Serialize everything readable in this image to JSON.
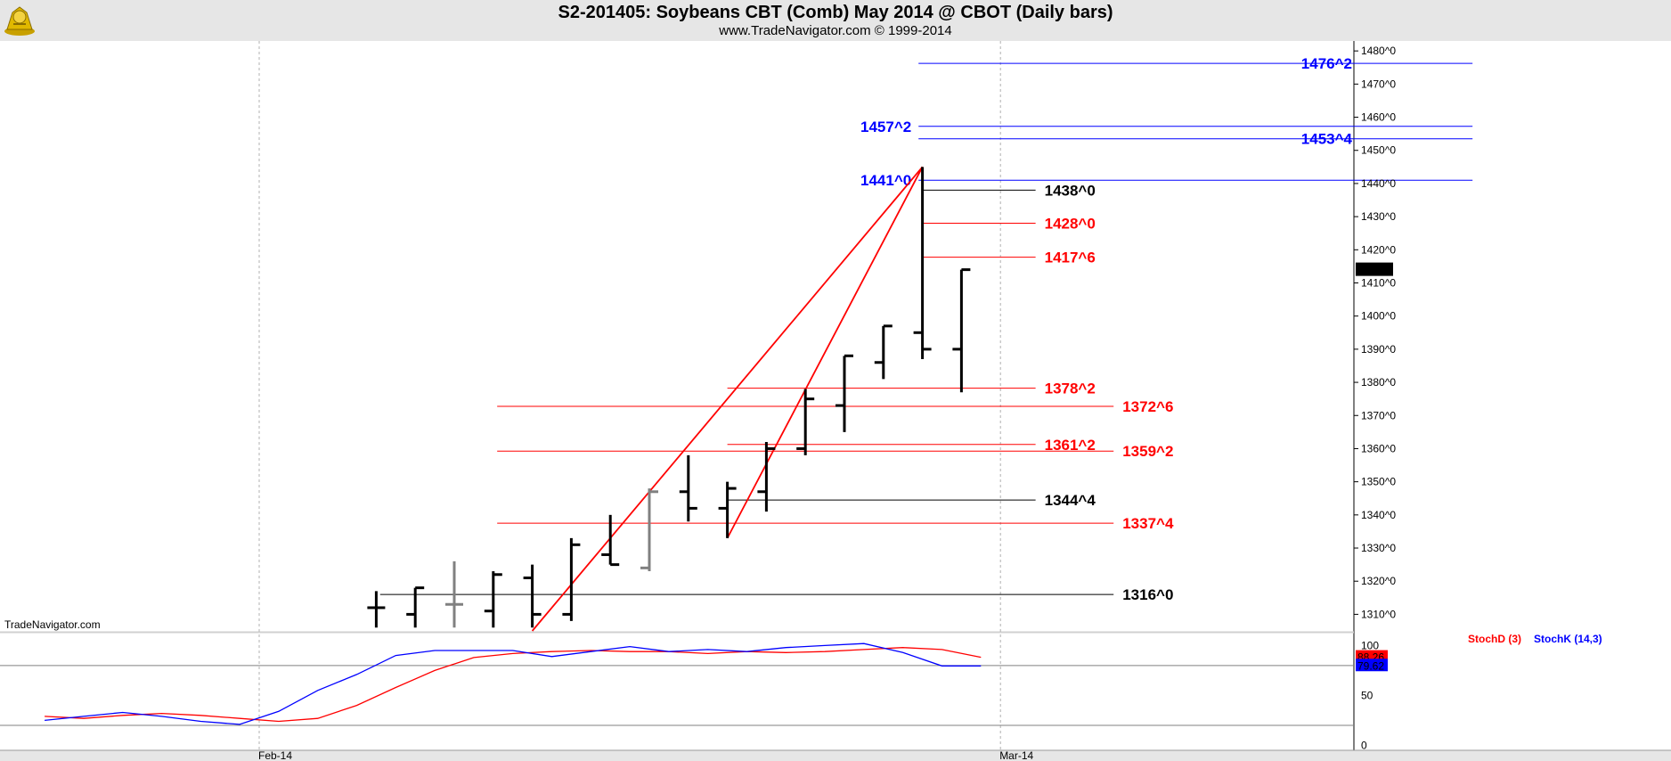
{
  "header": {
    "title": "S2-201405:  Soybeans CBT (Comb) May 2014 @ CBOT  (Daily bars)",
    "subtitle": "www.TradeNavigator.com © 1999-2014"
  },
  "watermark": "TradeNavigator.com",
  "colors": {
    "bar": "#000000",
    "bar_gray": "#808080",
    "red": "#ff0000",
    "blue": "#0000ff",
    "black": "#000000",
    "header_bg": "#e6e6e6"
  },
  "chart_data": [
    {
      "type": "ohlc",
      "title": "S2-201405:  Soybeans CBT (Comb) May 2014 @ CBOT  (Daily bars)",
      "ylim": [
        1305,
        1483
      ],
      "y_ticks": [
        "1310^0",
        "1320^0",
        "1330^0",
        "1340^0",
        "1350^0",
        "1360^0",
        "1370^0",
        "1380^0",
        "1390^0",
        "1400^0",
        "1410^0",
        "1420^0",
        "1430^0",
        "1440^0",
        "1450^0",
        "1460^0",
        "1470^0",
        "1480^0"
      ],
      "y_tick_values": [
        1310,
        1320,
        1330,
        1340,
        1350,
        1360,
        1370,
        1380,
        1390,
        1400,
        1410,
        1420,
        1430,
        1440,
        1450,
        1460,
        1470,
        1480
      ],
      "x_labels": [
        {
          "label": "Feb-14",
          "bar": 0
        },
        {
          "label": "Mar-14",
          "bar": 19
        }
      ],
      "last_price": {
        "label": "1414^0",
        "value": 1414
      },
      "bars": [
        {
          "bar": 3,
          "open": 1312,
          "high": 1317,
          "low": 1306,
          "close": 1312,
          "color": "black"
        },
        {
          "bar": 4,
          "open": 1310,
          "high": 1318,
          "low": 1306,
          "close": 1318,
          "color": "black"
        },
        {
          "bar": 5,
          "open": 1313,
          "high": 1326,
          "low": 1306,
          "close": 1313,
          "color": "gray"
        },
        {
          "bar": 6,
          "open": 1311,
          "high": 1323,
          "low": 1306,
          "close": 1322,
          "color": "black"
        },
        {
          "bar": 7,
          "open": 1321,
          "high": 1325,
          "low": 1306,
          "close": 1310,
          "color": "black"
        },
        {
          "bar": 8,
          "open": 1310,
          "high": 1333,
          "low": 1308,
          "close": 1331,
          "color": "black"
        },
        {
          "bar": 9,
          "open": 1328,
          "high": 1340,
          "low": 1325,
          "close": 1325,
          "color": "black"
        },
        {
          "bar": 10,
          "open": 1324,
          "high": 1348,
          "low": 1323,
          "close": 1347,
          "color": "gray"
        },
        {
          "bar": 11,
          "open": 1347,
          "high": 1358,
          "low": 1338,
          "close": 1342,
          "color": "black"
        },
        {
          "bar": 12,
          "open": 1342,
          "high": 1350,
          "low": 1333,
          "close": 1348,
          "color": "black"
        },
        {
          "bar": 13,
          "open": 1347,
          "high": 1362,
          "low": 1341,
          "close": 1360,
          "color": "black"
        },
        {
          "bar": 14,
          "open": 1360,
          "high": 1378,
          "low": 1358,
          "close": 1375,
          "color": "black"
        },
        {
          "bar": 15,
          "open": 1373,
          "high": 1388,
          "low": 1365,
          "close": 1388,
          "color": "black"
        },
        {
          "bar": 16,
          "open": 1386,
          "high": 1397,
          "low": 1381,
          "close": 1397,
          "color": "black"
        },
        {
          "bar": 17,
          "open": 1395,
          "high": 1445,
          "low": 1387,
          "close": 1390,
          "color": "black"
        },
        {
          "bar": 18,
          "open": 1390,
          "high": 1414,
          "low": 1377,
          "close": 1414,
          "color": "black"
        }
      ],
      "trend_lines": [
        {
          "from": {
            "bar": 7,
            "value": 1305
          },
          "to": {
            "bar": 17,
            "value": 1445
          },
          "color": "red"
        },
        {
          "from": {
            "bar": 12,
            "value": 1333
          },
          "to": {
            "bar": 17,
            "value": 1445
          },
          "color": "red"
        }
      ],
      "levels": [
        {
          "label": "1476^2",
          "value": 1476.25,
          "color": "blue",
          "from_bar": 16.9,
          "to_bar": 31.1,
          "label_side": "right"
        },
        {
          "label": "1457^2",
          "value": 1457.25,
          "color": "blue",
          "from_bar": 16.9,
          "to_bar": 31.1,
          "label_side": "left"
        },
        {
          "label": "1453^4",
          "value": 1453.5,
          "color": "blue",
          "from_bar": 16.9,
          "to_bar": 31.1,
          "label_side": "right"
        },
        {
          "label": "1441^0",
          "value": 1441,
          "color": "blue",
          "from_bar": 16.9,
          "to_bar": 31.1,
          "label_side": "left"
        },
        {
          "label": "1438^0",
          "value": 1438,
          "color": "black",
          "from_bar": 17.0,
          "to_bar": 19.9,
          "label_side": "right"
        },
        {
          "label": "1428^0",
          "value": 1428,
          "color": "red",
          "from_bar": 17.0,
          "to_bar": 19.9,
          "label_side": "right"
        },
        {
          "label": "1417^6",
          "value": 1417.75,
          "color": "red",
          "from_bar": 17.0,
          "to_bar": 19.9,
          "label_side": "right"
        },
        {
          "label": "1378^2",
          "value": 1378.25,
          "color": "red",
          "from_bar": 12.0,
          "to_bar": 19.9,
          "label_side": "right"
        },
        {
          "label": "1372^6",
          "value": 1372.75,
          "color": "red",
          "from_bar": 6.1,
          "to_bar": 21.9,
          "label_side": "right"
        },
        {
          "label": "1361^2",
          "value": 1361.25,
          "color": "red",
          "from_bar": 12.0,
          "to_bar": 19.9,
          "label_side": "right"
        },
        {
          "label": "1359^2",
          "value": 1359.25,
          "color": "red",
          "from_bar": 6.1,
          "to_bar": 21.9,
          "label_side": "right"
        },
        {
          "label": "1344^4",
          "value": 1344.5,
          "color": "black",
          "from_bar": 12.0,
          "to_bar": 19.9,
          "label_side": "right"
        },
        {
          "label": "1337^4",
          "value": 1337.5,
          "color": "red",
          "from_bar": 6.1,
          "to_bar": 21.9,
          "label_side": "right"
        },
        {
          "label": "1316^0",
          "value": 1316,
          "color": "black",
          "from_bar": 3.1,
          "to_bar": 21.9,
          "label_side": "right"
        }
      ]
    },
    {
      "type": "line",
      "title": "",
      "ylim": [
        -5,
        112
      ],
      "y_ticks": [
        "0",
        "50",
        "100"
      ],
      "y_tick_values": [
        0,
        50,
        100
      ],
      "ref_lines": [
        80,
        20
      ],
      "x": [
        -5.5,
        -4.5,
        -3.5,
        -2.5,
        -1.5,
        -0.5,
        0.5,
        1.5,
        2.5,
        3.5,
        4.5,
        5.5,
        6.5,
        7.5,
        8.5,
        9.5,
        10.5,
        11.5,
        12.5,
        13.5,
        14.5,
        15.5,
        16.5,
        17.5,
        18.5
      ],
      "series": [
        {
          "name": "StochD (3)",
          "color": "red",
          "values": [
            29,
            27,
            30,
            32,
            30,
            27,
            24,
            27,
            40,
            58,
            75,
            88,
            92,
            94,
            95,
            94,
            94,
            92,
            94,
            93,
            94,
            96,
            98,
            96,
            88.26
          ]
        },
        {
          "name": "StochK (14,3)",
          "color": "blue",
          "values": [
            25,
            29,
            33,
            29,
            24,
            21,
            34,
            55,
            71,
            90,
            95,
            95,
            95,
            89,
            94,
            99,
            94,
            96,
            94,
            98,
            100,
            102,
            93,
            79.62,
            79.62
          ]
        }
      ],
      "last_values": [
        {
          "label": "88.26",
          "value": 88.26,
          "color": "red"
        },
        {
          "label": "79.62",
          "value": 79.62,
          "color": "blue"
        }
      ]
    }
  ]
}
